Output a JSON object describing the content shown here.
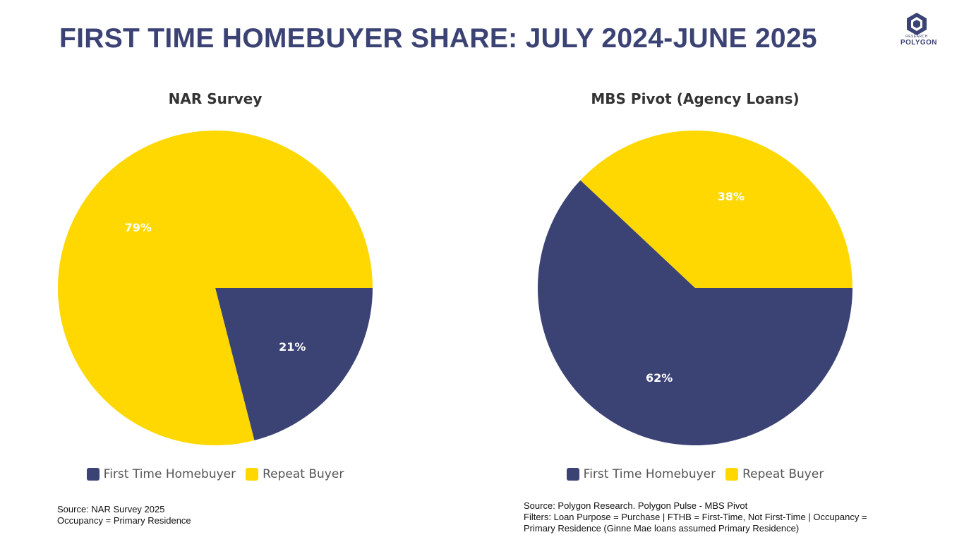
{
  "header": {
    "title": "FIRST TIME HOMEBUYER SHARE: JULY 2024-JUNE 2025",
    "logo_name": "POLYGON",
    "logo_sub": "RESEARCH"
  },
  "colors": {
    "first_time": "#3b4274",
    "repeat": "#fed800",
    "label_text": "#ffffff"
  },
  "chart_data": [
    {
      "type": "pie",
      "title": "NAR Survey",
      "categories": [
        "First Time Homebuyer",
        "Repeat Buyer"
      ],
      "values": [
        21,
        79
      ],
      "labels": [
        "21%",
        "79%"
      ],
      "start_angle_deg": 90,
      "direction": "clockwise",
      "legend_position": "bottom"
    },
    {
      "type": "pie",
      "title": "MBS Pivot (Agency Loans)",
      "categories": [
        "First Time Homebuyer",
        "Repeat Buyer"
      ],
      "values": [
        62,
        38
      ],
      "labels": [
        "62%",
        "38%"
      ],
      "start_angle_deg": 90,
      "direction": "clockwise",
      "legend_position": "bottom"
    }
  ],
  "sources": {
    "left": [
      "Source: NAR Survey 2025",
      "Occupancy = Primary Residence"
    ],
    "right": [
      "Source: Polygon Research. Polygon Pulse - MBS Pivot",
      "Filters: Loan Purpose = Purchase | FTHB = First-Time, Not First-Time | Occupancy =",
      "Primary Residence (Ginne Mae loans assumed Primary Residence)"
    ]
  }
}
